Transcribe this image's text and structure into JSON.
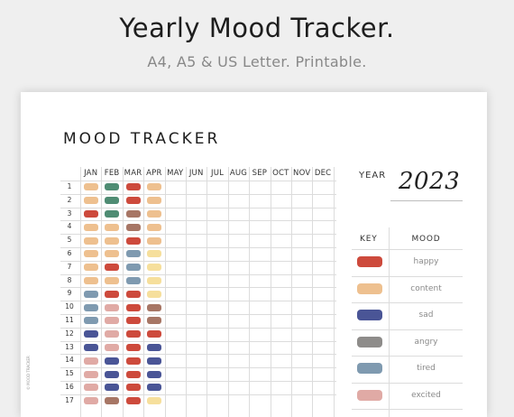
{
  "header": {
    "title": "Yearly Mood Tracker.",
    "subtitle": "A4, A5 & US Letter. Printable."
  },
  "sheet": {
    "title": "MOOD TRACKER",
    "year_label": "YEAR",
    "year_value": "2023",
    "copyright": "© MOOD TRACKER"
  },
  "months": [
    "JAN",
    "FEB",
    "MAR",
    "APR",
    "MAY",
    "JUN",
    "JUL",
    "AUG",
    "SEP",
    "OCT",
    "NOV",
    "DEC"
  ],
  "days": [
    "1",
    "2",
    "3",
    "4",
    "5",
    "6",
    "7",
    "8",
    "9",
    "10",
    "11",
    "12",
    "13",
    "14",
    "15",
    "16",
    "17"
  ],
  "key": {
    "key_header": "KEY",
    "mood_header": "MOOD",
    "items": [
      {
        "mood": "happy",
        "color": "#cd4a3c"
      },
      {
        "mood": "content",
        "color": "#eec08f"
      },
      {
        "mood": "sad",
        "color": "#4a5596"
      },
      {
        "mood": "angry",
        "color": "#8e8c8a"
      },
      {
        "mood": "tired",
        "color": "#7f9ab0"
      },
      {
        "mood": "excited",
        "color": "#e0aaa5"
      }
    ]
  },
  "mood_colors": {
    "happy": "#cd4a3c",
    "content": "#eec08f",
    "sad": "#4a5596",
    "angry": "#8e8c8a",
    "tired": "#7f9ab0",
    "excited": "#e0aaa5",
    "green": "#4f8c73",
    "brown": "#a77665",
    "yellow": "#f6df9c"
  },
  "entries": [
    [
      "content",
      "green",
      "happy",
      "content"
    ],
    [
      "content",
      "green",
      "happy",
      "content"
    ],
    [
      "happy",
      "green",
      "brown",
      "content"
    ],
    [
      "content",
      "content",
      "brown",
      "content"
    ],
    [
      "content",
      "content",
      "happy",
      "content"
    ],
    [
      "content",
      "content",
      "tired",
      "yellow"
    ],
    [
      "content",
      "happy",
      "tired",
      "yellow"
    ],
    [
      "content",
      "content",
      "tired",
      "yellow"
    ],
    [
      "tired",
      "happy",
      "happy",
      "yellow"
    ],
    [
      "tired",
      "excited",
      "happy",
      "brown"
    ],
    [
      "tired",
      "excited",
      "happy",
      "brown"
    ],
    [
      "sad",
      "excited",
      "happy",
      "happy"
    ],
    [
      "sad",
      "excited",
      "happy",
      "sad"
    ],
    [
      "excited",
      "sad",
      "happy",
      "sad"
    ],
    [
      "excited",
      "sad",
      "happy",
      "sad"
    ],
    [
      "excited",
      "sad",
      "happy",
      "sad"
    ],
    [
      "excited",
      "brown",
      "happy",
      "yellow"
    ]
  ]
}
